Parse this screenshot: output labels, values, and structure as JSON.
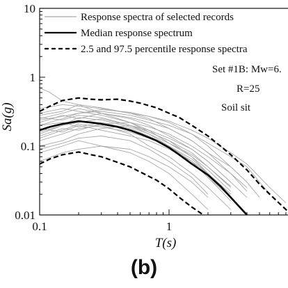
{
  "chart_data": {
    "type": "line",
    "xscale": "log",
    "yscale": "log",
    "xlim": [
      0.1,
      10
    ],
    "ylim": [
      0.01,
      10
    ],
    "xticks": [
      "0.1",
      "1"
    ],
    "yticks": [
      "0.01",
      "0.1",
      "1",
      "10"
    ],
    "xlabel": "T(s)",
    "ylabel": "Sa(g)",
    "legend": {
      "placement": "top",
      "entries": [
        "Response spectra of selected records",
        "Median response spectrum",
        "2.5 and 97.5 percentile response spectra"
      ]
    },
    "annotations": {
      "set": "Set #1B: Mw=6.",
      "distance": "R=25",
      "site": "Soil sit"
    },
    "colors": {
      "records": "#a8a8a8",
      "median": "#000000",
      "percentile": "#000000"
    },
    "median": {
      "x": [
        0.1,
        0.12,
        0.15,
        0.2,
        0.25,
        0.3,
        0.4,
        0.5,
        0.6,
        0.8,
        1.0,
        1.2,
        1.5,
        2.0,
        2.5,
        3.0,
        4.0,
        5.0
      ],
      "y": [
        0.17,
        0.19,
        0.21,
        0.23,
        0.22,
        0.21,
        0.19,
        0.17,
        0.15,
        0.12,
        0.095,
        0.075,
        0.055,
        0.038,
        0.026,
        0.018,
        0.01,
        0.006
      ]
    },
    "percentile_97_5": {
      "x": [
        0.1,
        0.12,
        0.15,
        0.2,
        0.25,
        0.3,
        0.4,
        0.5,
        0.6,
        0.8,
        1.0,
        1.2,
        1.5,
        2.0,
        2.5,
        3.0,
        4.0,
        5.0,
        6.0,
        8.0,
        10.0
      ],
      "y": [
        0.32,
        0.38,
        0.46,
        0.5,
        0.48,
        0.47,
        0.48,
        0.45,
        0.42,
        0.36,
        0.3,
        0.26,
        0.2,
        0.14,
        0.1,
        0.075,
        0.045,
        0.028,
        0.02,
        0.012,
        0.008
      ]
    },
    "percentile_2_5": {
      "x": [
        0.1,
        0.12,
        0.15,
        0.2,
        0.25,
        0.3,
        0.4,
        0.5,
        0.6,
        0.8,
        1.0,
        1.2,
        1.5,
        2.0,
        2.5
      ],
      "y": [
        0.055,
        0.065,
        0.075,
        0.082,
        0.075,
        0.07,
        0.058,
        0.05,
        0.042,
        0.032,
        0.024,
        0.018,
        0.013,
        0.009,
        0.0065
      ]
    },
    "records": [
      {
        "x": [
          0.1,
          0.15,
          0.2,
          0.3,
          0.5,
          0.7,
          1.0,
          1.5,
          2.0,
          3.0
        ],
        "y": [
          0.25,
          0.3,
          0.35,
          0.3,
          0.25,
          0.2,
          0.14,
          0.09,
          0.06,
          0.03
        ]
      },
      {
        "x": [
          0.1,
          0.15,
          0.2,
          0.3,
          0.5,
          0.7,
          1.0,
          1.5,
          2.0,
          3.0
        ],
        "y": [
          0.12,
          0.15,
          0.18,
          0.2,
          0.15,
          0.1,
          0.07,
          0.04,
          0.025,
          0.012
        ]
      },
      {
        "x": [
          0.1,
          0.15,
          0.2,
          0.3,
          0.5,
          0.7,
          1.0,
          1.5,
          2.0,
          3.0,
          4.0
        ],
        "y": [
          0.35,
          0.4,
          0.38,
          0.35,
          0.3,
          0.27,
          0.22,
          0.15,
          0.1,
          0.05,
          0.03
        ]
      },
      {
        "x": [
          0.1,
          0.15,
          0.2,
          0.3,
          0.5,
          0.7,
          1.0,
          1.5,
          2.0
        ],
        "y": [
          0.08,
          0.1,
          0.12,
          0.1,
          0.08,
          0.06,
          0.04,
          0.02,
          0.012
        ]
      },
      {
        "x": [
          0.1,
          0.15,
          0.2,
          0.3,
          0.5,
          0.7,
          1.0,
          1.5,
          2.0,
          3.0,
          4.0,
          6.0
        ],
        "y": [
          0.2,
          0.25,
          0.3,
          0.32,
          0.28,
          0.24,
          0.2,
          0.15,
          0.11,
          0.07,
          0.05,
          0.02
        ]
      },
      {
        "x": [
          0.1,
          0.12,
          0.15,
          0.2,
          0.3,
          0.5,
          0.7,
          1.0,
          1.5,
          2.0,
          3.0
        ],
        "y": [
          0.7,
          0.6,
          0.45,
          0.4,
          0.3,
          0.22,
          0.16,
          0.12,
          0.07,
          0.04,
          0.02
        ]
      },
      {
        "x": [
          0.1,
          0.15,
          0.2,
          0.3,
          0.5,
          0.7,
          1.0,
          1.5,
          2.0,
          3.0
        ],
        "y": [
          0.15,
          0.2,
          0.22,
          0.25,
          0.2,
          0.16,
          0.12,
          0.08,
          0.05,
          0.025
        ]
      },
      {
        "x": [
          0.1,
          0.15,
          0.2,
          0.3,
          0.5,
          0.7,
          1.0,
          1.5,
          2.0,
          3.0,
          4.0
        ],
        "y": [
          0.1,
          0.12,
          0.15,
          0.18,
          0.2,
          0.17,
          0.13,
          0.09,
          0.06,
          0.03,
          0.018
        ]
      },
      {
        "x": [
          0.1,
          0.15,
          0.2,
          0.3,
          0.5,
          0.7,
          1.0,
          1.5,
          2.0,
          3.0
        ],
        "y": [
          0.3,
          0.35,
          0.32,
          0.28,
          0.22,
          0.17,
          0.11,
          0.07,
          0.045,
          0.022
        ]
      },
      {
        "x": [
          0.1,
          0.15,
          0.2,
          0.3,
          0.5,
          0.7,
          1.0,
          1.5,
          2.0
        ],
        "y": [
          0.06,
          0.08,
          0.09,
          0.1,
          0.09,
          0.07,
          0.05,
          0.03,
          0.018
        ]
      },
      {
        "x": [
          0.1,
          0.15,
          0.2,
          0.3,
          0.5,
          0.7,
          1.0,
          1.5,
          2.0,
          3.0,
          4.0,
          5.0
        ],
        "y": [
          0.22,
          0.28,
          0.25,
          0.3,
          0.26,
          0.22,
          0.18,
          0.12,
          0.08,
          0.05,
          0.03,
          0.018
        ]
      },
      {
        "x": [
          0.1,
          0.15,
          0.2,
          0.3,
          0.5,
          0.7,
          1.0,
          1.5,
          2.0,
          3.0
        ],
        "y": [
          0.18,
          0.16,
          0.2,
          0.17,
          0.14,
          0.12,
          0.09,
          0.06,
          0.035,
          0.018
        ]
      },
      {
        "x": [
          0.1,
          0.15,
          0.2,
          0.3,
          0.5,
          0.7,
          1.0,
          1.5,
          2.0,
          3.0,
          4.0
        ],
        "y": [
          0.28,
          0.32,
          0.4,
          0.36,
          0.3,
          0.25,
          0.18,
          0.12,
          0.08,
          0.04,
          0.022
        ]
      },
      {
        "x": [
          0.1,
          0.15,
          0.2,
          0.3,
          0.5,
          0.7,
          1.0,
          1.5,
          2.0,
          3.0
        ],
        "y": [
          0.13,
          0.17,
          0.21,
          0.19,
          0.16,
          0.13,
          0.1,
          0.06,
          0.04,
          0.02
        ]
      },
      {
        "x": [
          0.1,
          0.15,
          0.2,
          0.3,
          0.5,
          0.7,
          1.0,
          1.5,
          2.0
        ],
        "y": [
          0.09,
          0.11,
          0.13,
          0.14,
          0.12,
          0.09,
          0.06,
          0.035,
          0.02
        ]
      },
      {
        "x": [
          0.1,
          0.15,
          0.2,
          0.3,
          0.5,
          0.7,
          1.0,
          1.5,
          2.0,
          3.0,
          4.0,
          6.0,
          8.0
        ],
        "y": [
          0.24,
          0.27,
          0.3,
          0.34,
          0.31,
          0.27,
          0.23,
          0.17,
          0.13,
          0.08,
          0.055,
          0.025,
          0.015
        ]
      },
      {
        "x": [
          0.1,
          0.15,
          0.2,
          0.3,
          0.5,
          0.7,
          1.0,
          1.5,
          2.0,
          3.0
        ],
        "y": [
          0.2,
          0.22,
          0.19,
          0.22,
          0.18,
          0.14,
          0.1,
          0.065,
          0.04,
          0.02
        ]
      },
      {
        "x": [
          0.1,
          0.15,
          0.2,
          0.3,
          0.5,
          0.7,
          1.0,
          1.5,
          2.0,
          3.0
        ],
        "y": [
          0.16,
          0.2,
          0.26,
          0.24,
          0.19,
          0.15,
          0.11,
          0.075,
          0.05,
          0.026
        ]
      },
      {
        "x": [
          0.1,
          0.15,
          0.2,
          0.3,
          0.5,
          0.7,
          1.0,
          1.5,
          2.0,
          3.0,
          4.0
        ],
        "y": [
          0.14,
          0.18,
          0.17,
          0.21,
          0.22,
          0.19,
          0.15,
          0.1,
          0.07,
          0.04,
          0.025
        ]
      },
      {
        "x": [
          0.1,
          0.15,
          0.2,
          0.3,
          0.5,
          0.7,
          1.0,
          1.5,
          2.0,
          3.0
        ],
        "y": [
          0.26,
          0.24,
          0.28,
          0.26,
          0.2,
          0.15,
          0.1,
          0.06,
          0.035,
          0.016
        ]
      }
    ]
  }
}
